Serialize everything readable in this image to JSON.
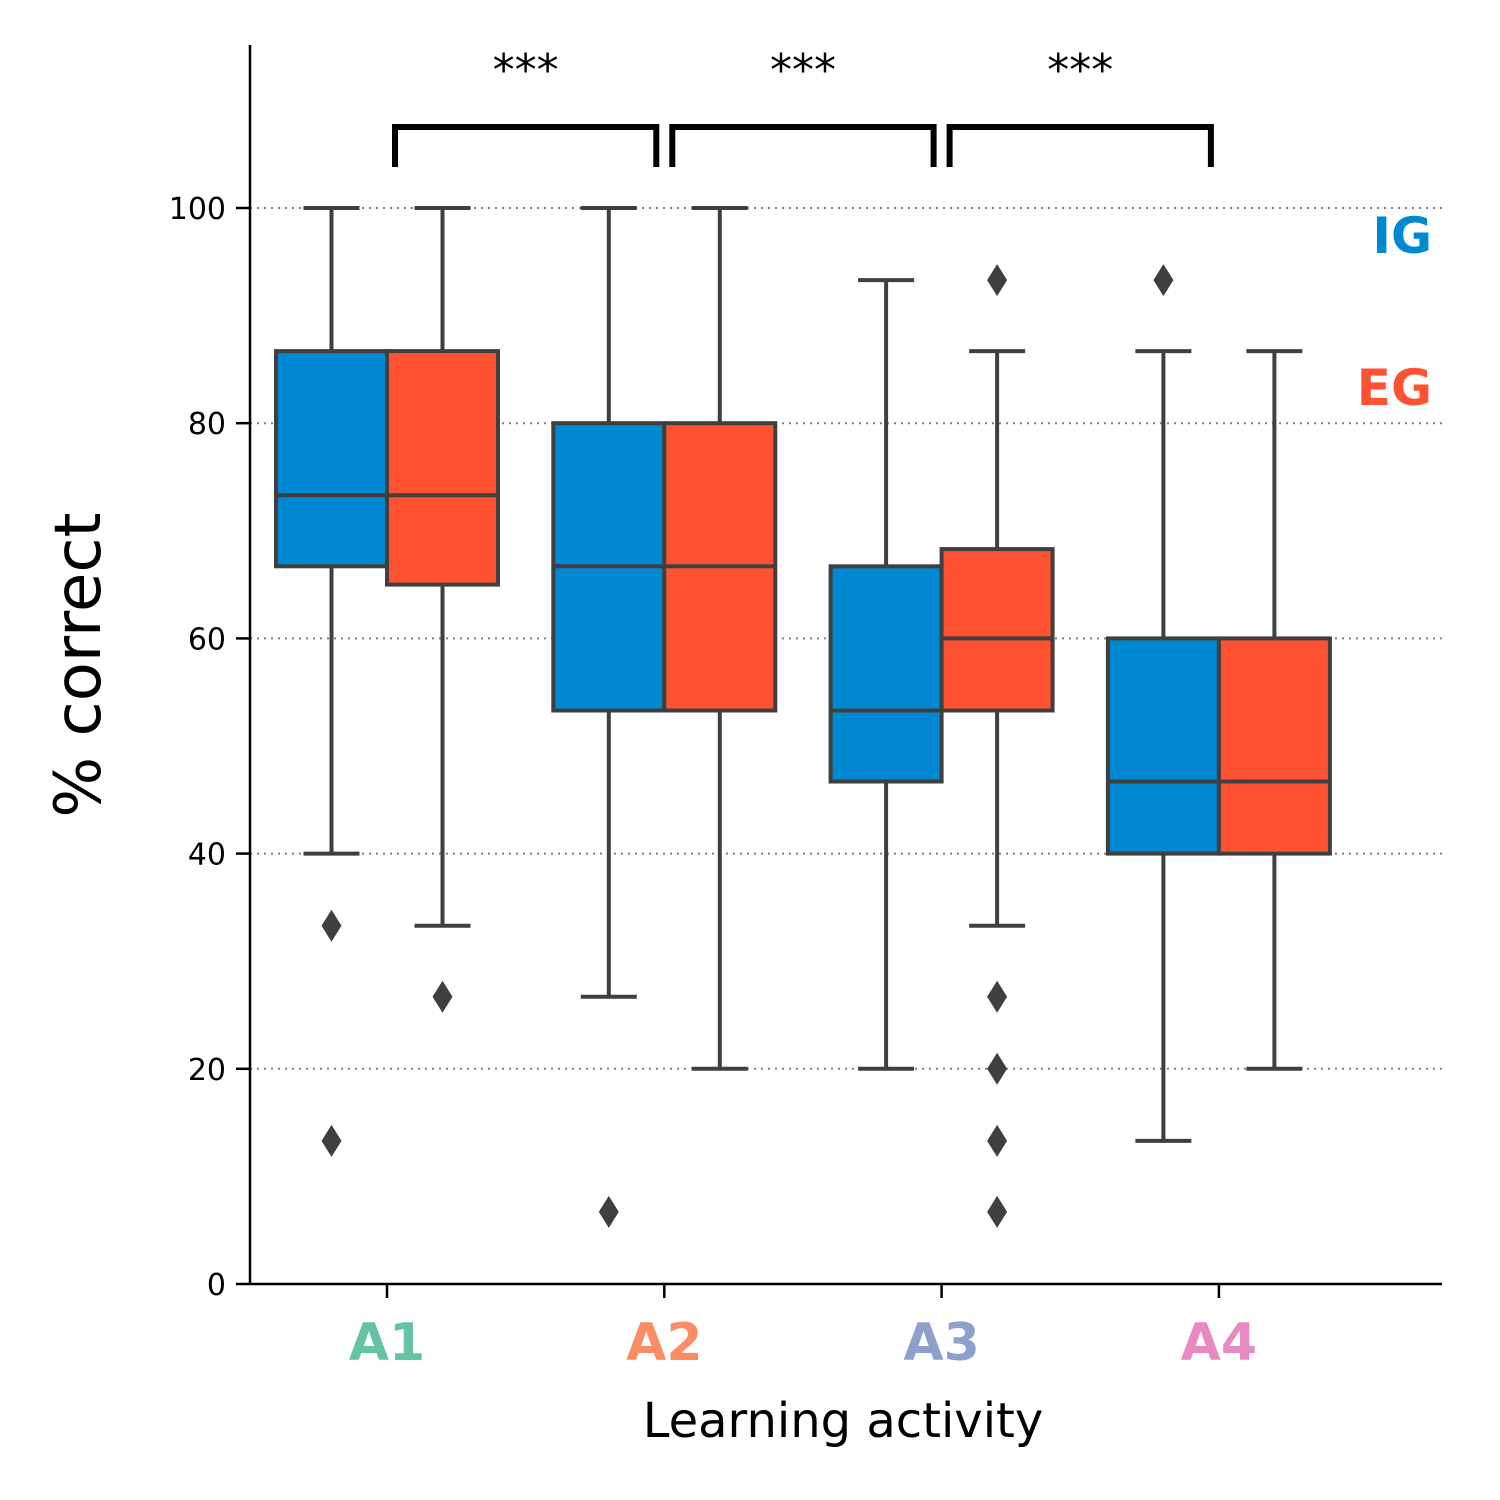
{
  "chart_data": {
    "type": "box",
    "xlabel": "Learning activity",
    "ylabel": "% correct",
    "ylim": [
      0,
      115
    ],
    "yticks": [
      0,
      20,
      40,
      60,
      80,
      100
    ],
    "grid_y": [
      20,
      40,
      60,
      80,
      100
    ],
    "grid_style": "dotted",
    "categories": [
      {
        "label": "A1",
        "color": "#66c2a5"
      },
      {
        "label": "A2",
        "color": "#fc8d62"
      },
      {
        "label": "A3",
        "color": "#8da0cb"
      },
      {
        "label": "A4",
        "color": "#e78ac3"
      }
    ],
    "series": [
      {
        "name": "IG",
        "color": "#0088d1",
        "boxes": [
          {
            "whisker_low": 40,
            "q1": 66.7,
            "median": 73.3,
            "q3": 86.7,
            "whisker_high": 100,
            "outliers": [
              33.3,
              13.3
            ]
          },
          {
            "whisker_low": 26.7,
            "q1": 53.3,
            "median": 66.7,
            "q3": 80,
            "whisker_high": 100,
            "outliers": [
              6.7
            ]
          },
          {
            "whisker_low": 20,
            "q1": 46.7,
            "median": 53.3,
            "q3": 66.7,
            "whisker_high": 93.3,
            "outliers": []
          },
          {
            "whisker_low": 13.3,
            "q1": 40,
            "median": 46.7,
            "q3": 60,
            "whisker_high": 86.7,
            "outliers": [
              93.3
            ]
          }
        ]
      },
      {
        "name": "EG",
        "color": "#ff5232",
        "boxes": [
          {
            "whisker_low": 33.3,
            "q1": 65,
            "median": 73.3,
            "q3": 86.7,
            "whisker_high": 100,
            "outliers": [
              26.7
            ]
          },
          {
            "whisker_low": 20,
            "q1": 53.3,
            "median": 66.7,
            "q3": 80,
            "whisker_high": 100,
            "outliers": []
          },
          {
            "whisker_low": 33.3,
            "q1": 53.3,
            "median": 60,
            "q3": 68.3,
            "whisker_high": 86.7,
            "outliers": [
              93.3,
              26.7,
              20,
              13.3,
              6.7
            ]
          },
          {
            "whisker_low": 20,
            "q1": 40,
            "median": 46.7,
            "q3": 60,
            "whisker_high": 86.7,
            "outliers": []
          }
        ]
      }
    ],
    "significance": [
      {
        "from": 0,
        "to": 1,
        "label": "***"
      },
      {
        "from": 1,
        "to": 2,
        "label": "***"
      },
      {
        "from": 2,
        "to": 3,
        "label": "***"
      }
    ],
    "legend": {
      "placement": "right",
      "entries": [
        "IG",
        "EG"
      ]
    }
  }
}
